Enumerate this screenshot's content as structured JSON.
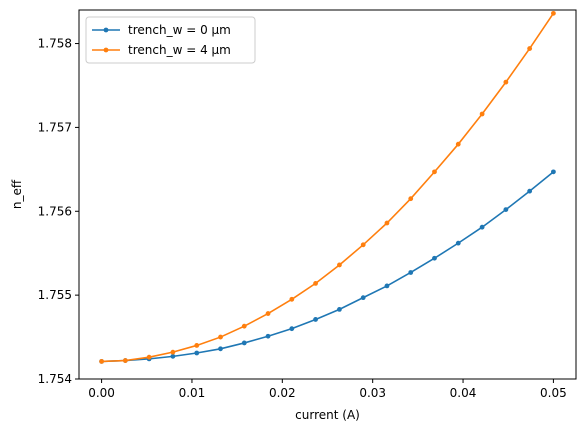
{
  "chart_data": {
    "type": "line",
    "title": "",
    "xlabel": "current (A)",
    "ylabel": "n_eff",
    "xlim": [
      -0.0025,
      0.0525
    ],
    "ylim": [
      1.754,
      1.7584
    ],
    "xticks": [
      0.0,
      0.01,
      0.02,
      0.03,
      0.04,
      0.05
    ],
    "xtick_labels": [
      "0.00",
      "0.01",
      "0.02",
      "0.03",
      "0.04",
      "0.05"
    ],
    "yticks": [
      1.754,
      1.755,
      1.756,
      1.757,
      1.758
    ],
    "ytick_labels": [
      "1.754",
      "1.755",
      "1.756",
      "1.757",
      "1.758"
    ],
    "grid": false,
    "legend_position": "top-left",
    "x": [
      0.0,
      0.00263,
      0.00526,
      0.00789,
      0.01053,
      0.01316,
      0.01579,
      0.01842,
      0.02105,
      0.02368,
      0.02632,
      0.02895,
      0.03158,
      0.03421,
      0.03684,
      0.03947,
      0.04211,
      0.04474,
      0.04737,
      0.05
    ],
    "series": [
      {
        "name": "trench_w = 0 μm",
        "color": "#1f77b4",
        "values": [
          1.75421,
          1.75422,
          1.75424,
          1.75427,
          1.75431,
          1.75436,
          1.75443,
          1.75451,
          1.7546,
          1.75471,
          1.75483,
          1.75497,
          1.75511,
          1.75527,
          1.75544,
          1.75562,
          1.75581,
          1.75602,
          1.75624,
          1.75647
        ]
      },
      {
        "name": "trench_w = 4 μm",
        "color": "#ff7f0e",
        "values": [
          1.75421,
          1.75422,
          1.75426,
          1.75432,
          1.7544,
          1.7545,
          1.75463,
          1.75478,
          1.75495,
          1.75514,
          1.75536,
          1.7556,
          1.75586,
          1.75615,
          1.75647,
          1.7568,
          1.75716,
          1.75754,
          1.75794,
          1.75836
        ]
      }
    ]
  }
}
